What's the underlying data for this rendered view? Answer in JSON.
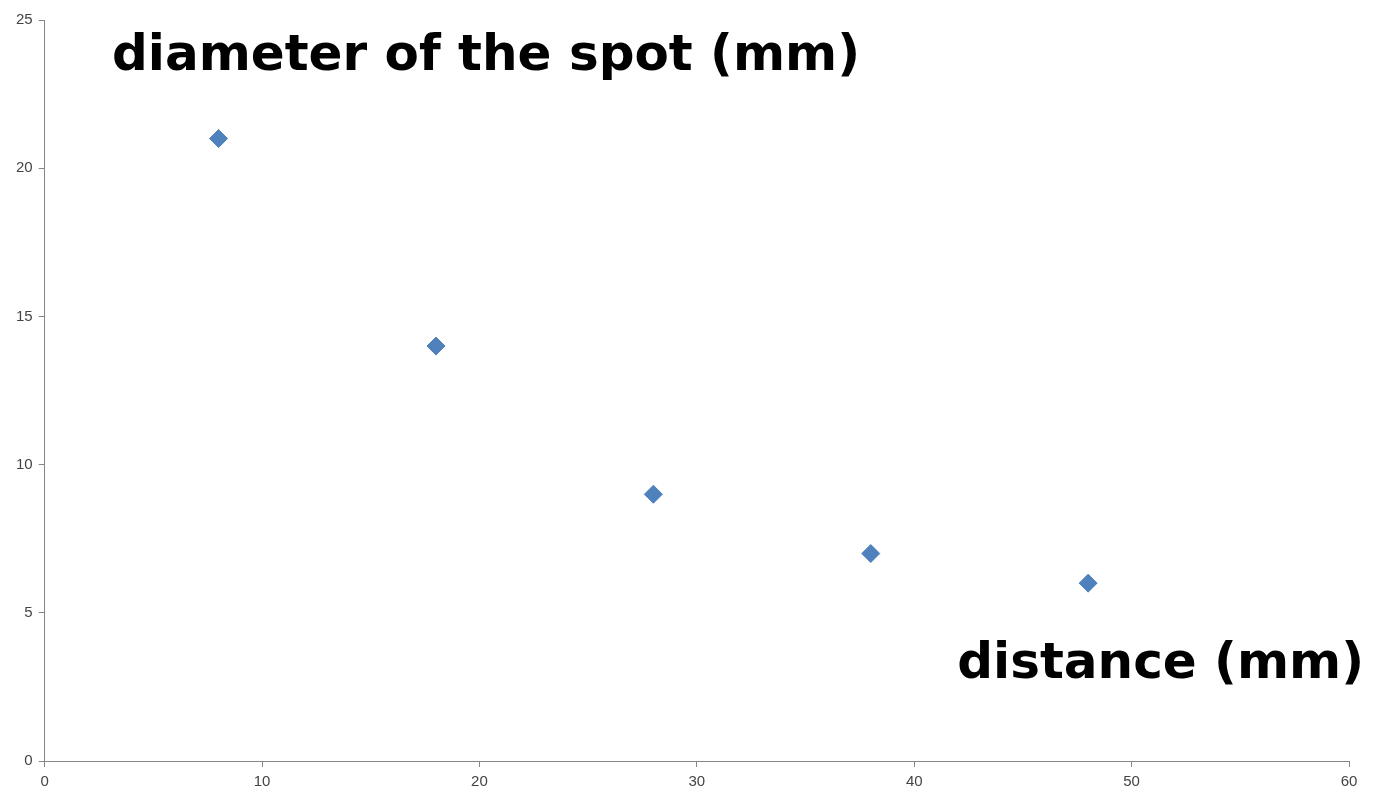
{
  "chart_data": {
    "type": "scatter",
    "xlabel": "distance (mm)",
    "ylabel": "diameter of the spot (mm)",
    "x": [
      8,
      18,
      28,
      38,
      48
    ],
    "series": [
      {
        "color": "#4f81bd",
        "values": [
          21,
          14,
          9,
          7,
          6
        ]
      }
    ],
    "xlim": [
      0,
      60
    ],
    "xticks": [
      0,
      10,
      20,
      30,
      40,
      50,
      60
    ],
    "ylim": [
      0,
      25
    ],
    "yticks": [
      0,
      5,
      10,
      15,
      20,
      25
    ],
    "grid": false,
    "legend": false,
    "marker": "diamond"
  }
}
